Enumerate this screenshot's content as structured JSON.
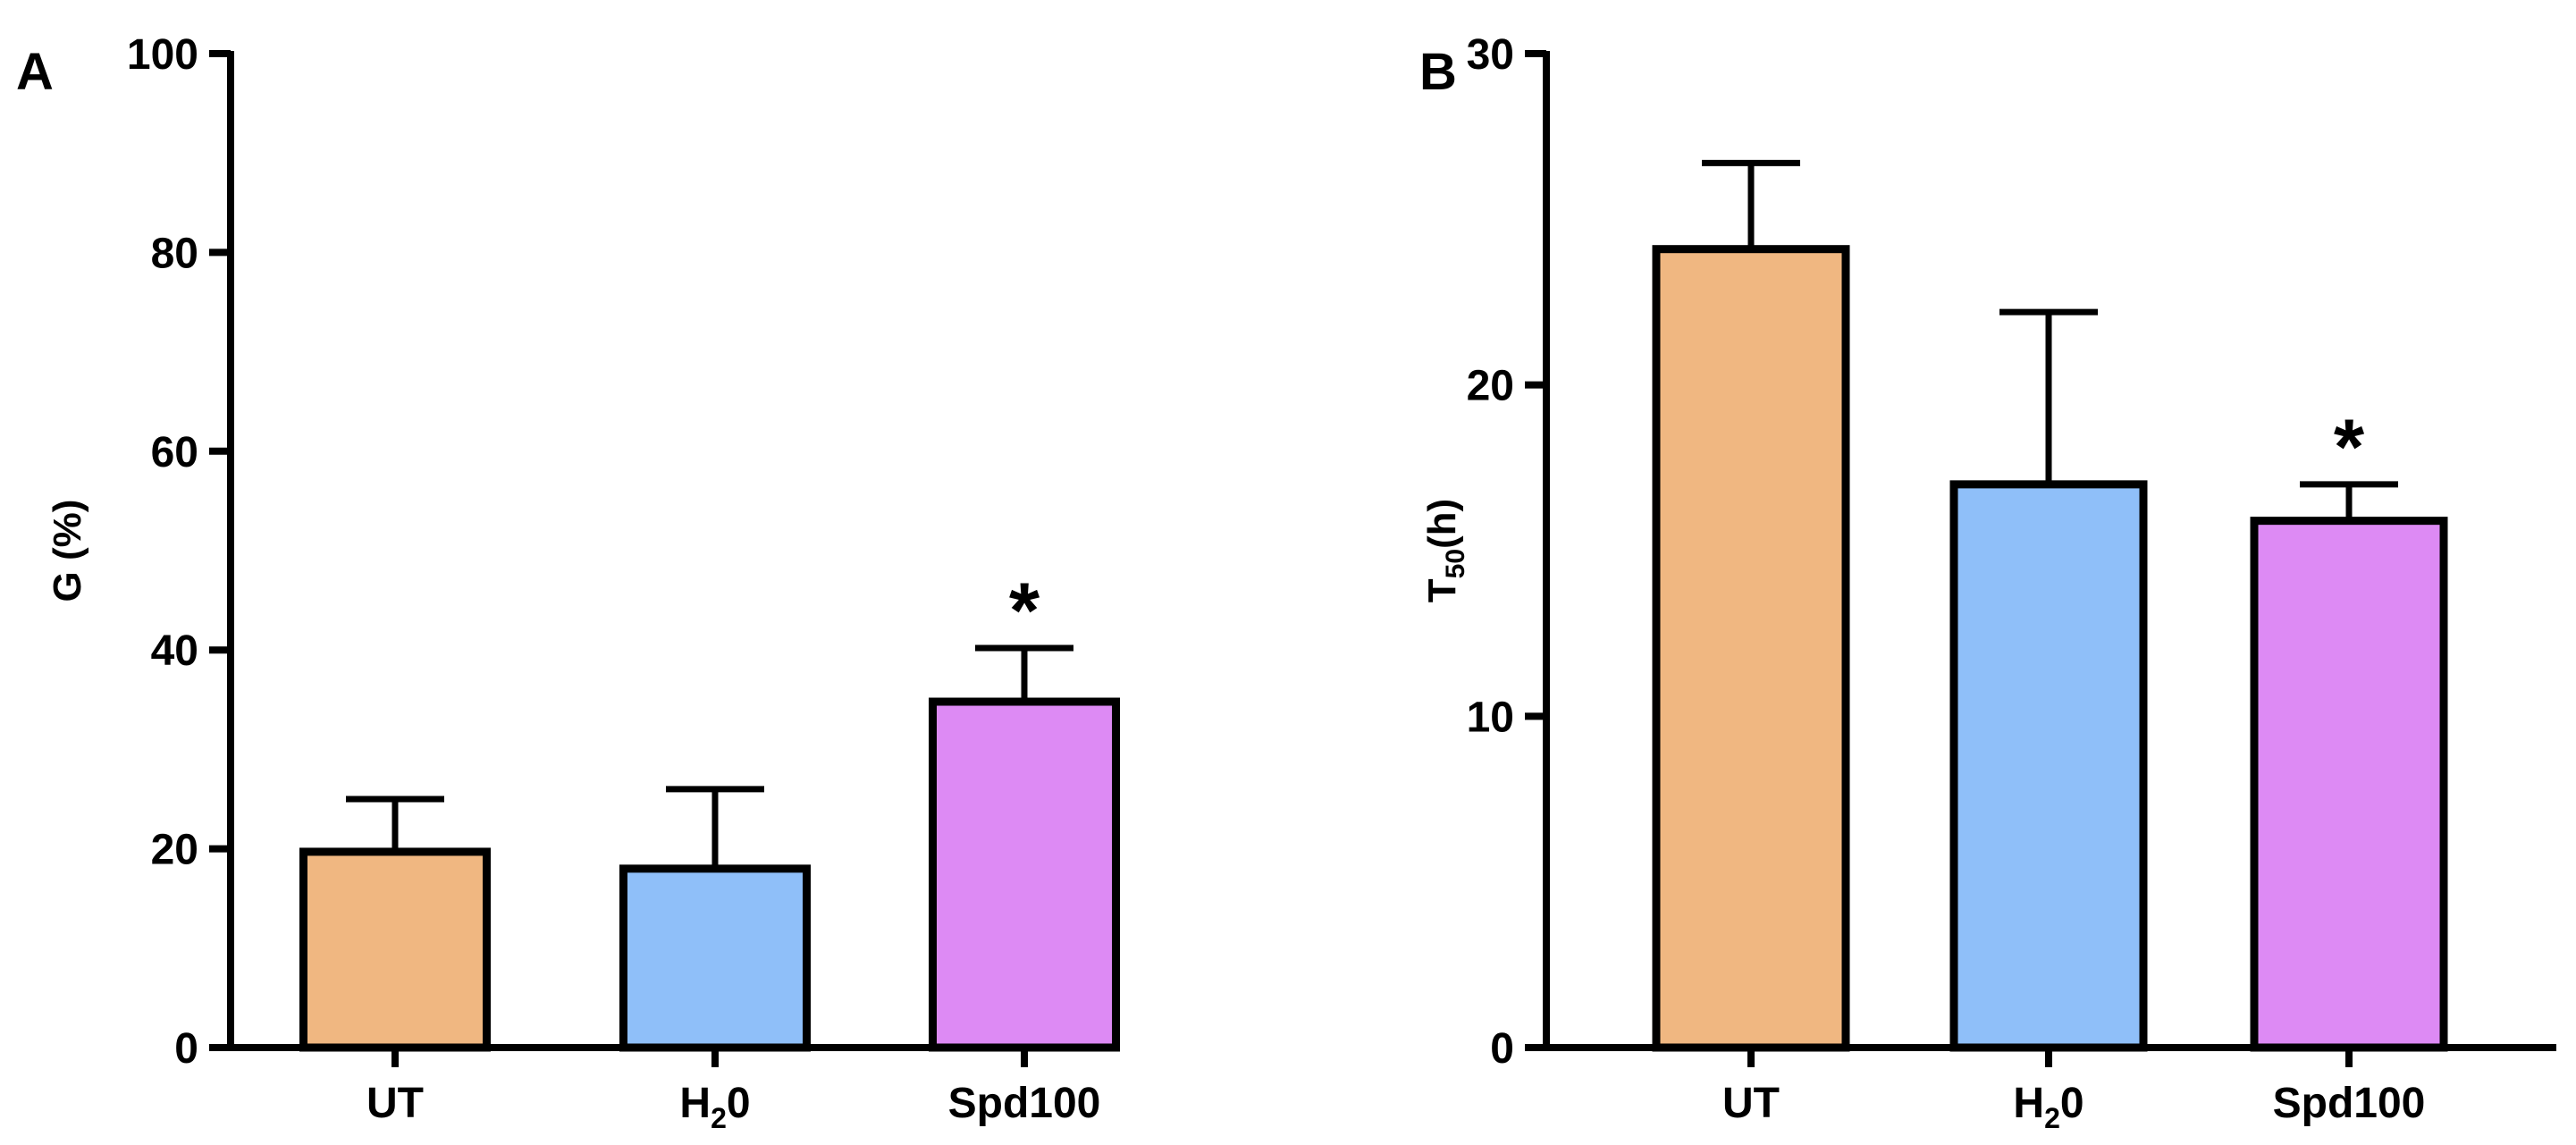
{
  "chart_data": [
    {
      "type": "bar",
      "panel_label": "A",
      "title": "",
      "xlabel": "",
      "ylabel": "G (%)",
      "ylim": [
        0,
        100
      ],
      "yticks": [
        0,
        20,
        40,
        60,
        80,
        100
      ],
      "categories": [
        {
          "base": "UT",
          "sub": "",
          "tail": ""
        },
        {
          "base": "H",
          "sub": "2",
          "tail": "0"
        },
        {
          "base": "Spd100",
          "sub": "",
          "tail": ""
        }
      ],
      "values": [
        19.7,
        18.0,
        34.8
      ],
      "errors": [
        5.3,
        8.0,
        5.4
      ],
      "colors": [
        "#f0b781",
        "#8fbff9",
        "#dd8af4"
      ],
      "annotations": [
        {
          "category_index": 2,
          "text": "*"
        }
      ],
      "grid": false,
      "legend": "none"
    },
    {
      "type": "bar",
      "panel_label": "B",
      "title": "",
      "xlabel": "",
      "ylabel": {
        "base": "T",
        "sub": "50",
        "tail": "(h)"
      },
      "ylim": [
        0,
        30
      ],
      "yticks": [
        0,
        10,
        20,
        30
      ],
      "categories": [
        {
          "base": "UT",
          "sub": "",
          "tail": ""
        },
        {
          "base": "H",
          "sub": "2",
          "tail": "0"
        },
        {
          "base": "Spd100",
          "sub": "",
          "tail": ""
        }
      ],
      "values": [
        24.1,
        17.0,
        15.9
      ],
      "errors": [
        2.6,
        5.2,
        1.1
      ],
      "colors": [
        "#f0b781",
        "#8fbff9",
        "#dd8af4"
      ],
      "annotations": [
        {
          "category_index": 2,
          "text": "*"
        }
      ],
      "grid": false,
      "legend": "none"
    }
  ]
}
